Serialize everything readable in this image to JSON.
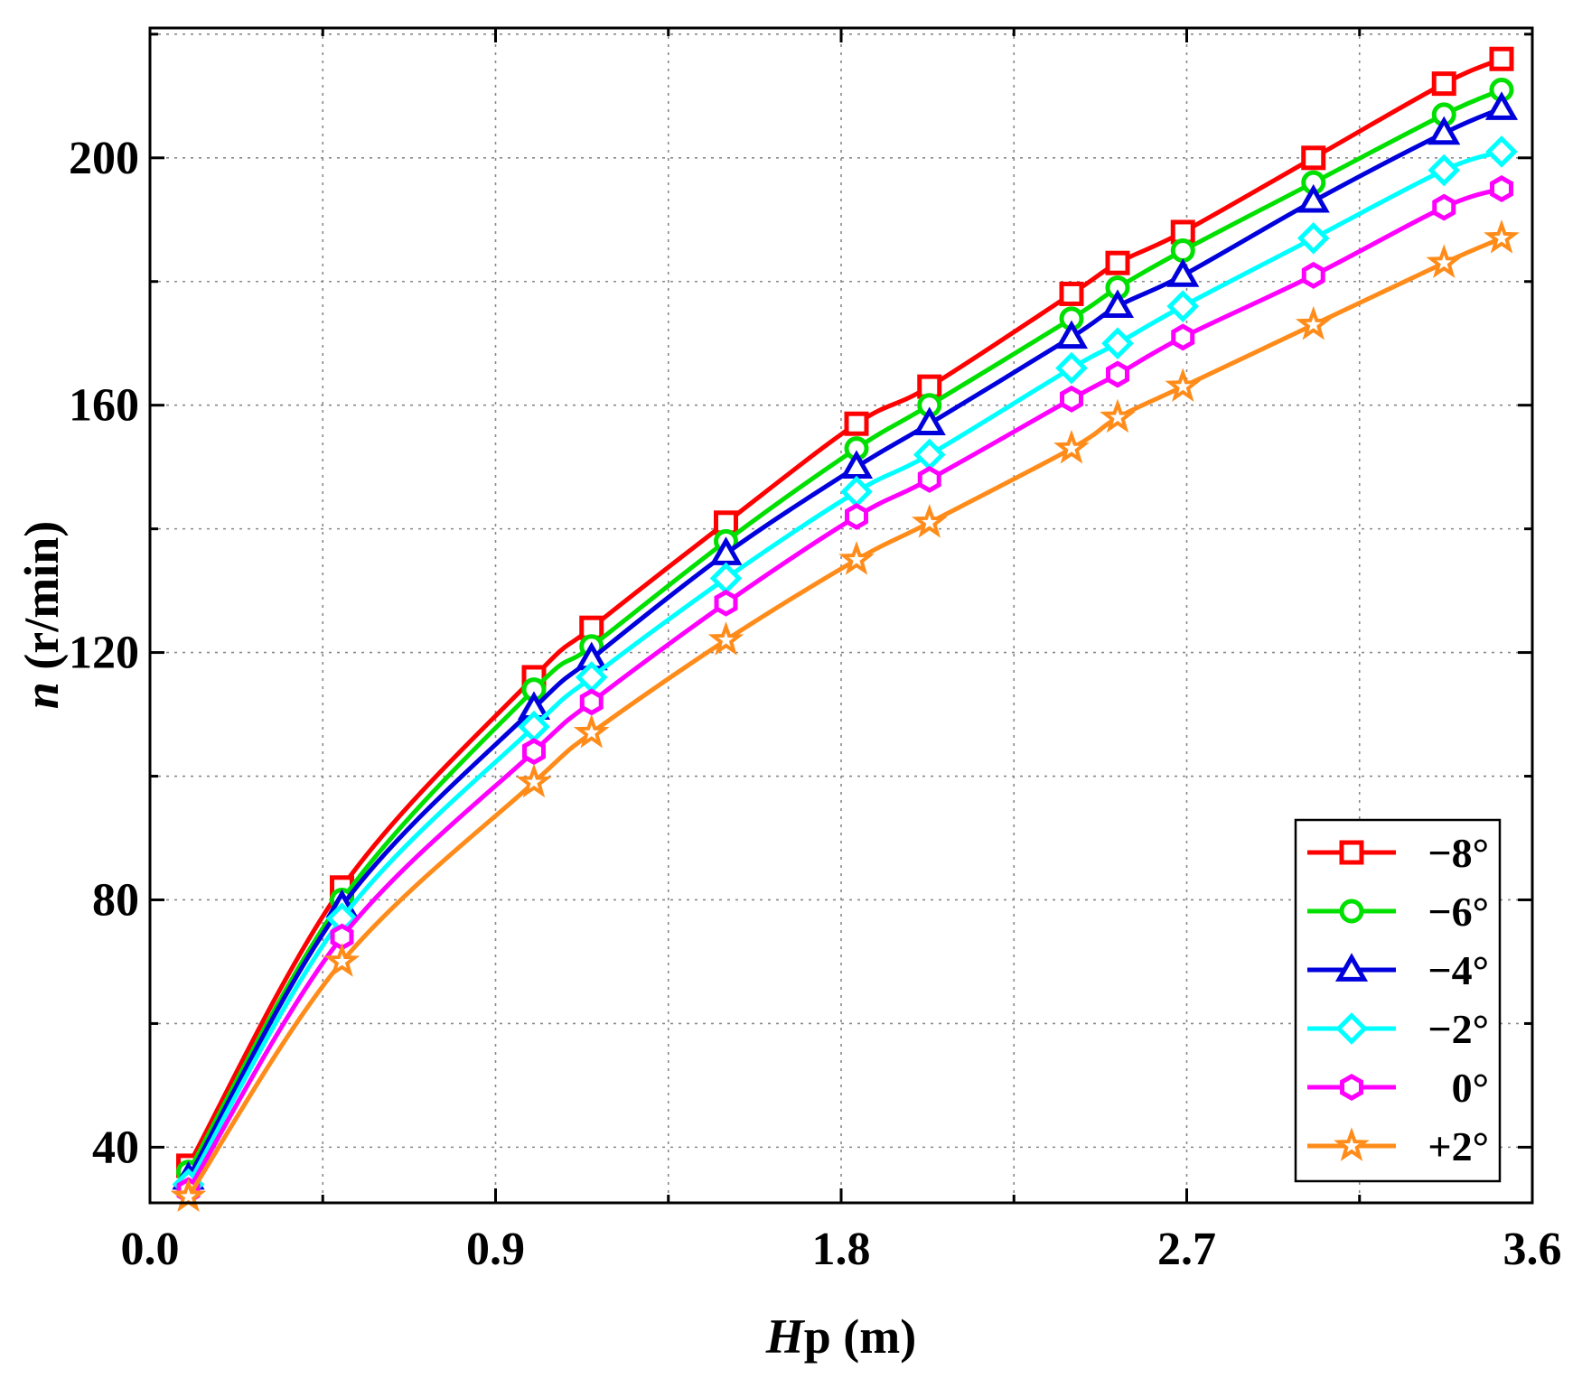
{
  "chart_data": {
    "type": "line",
    "title": "",
    "xlabel_italic": "H",
    "xlabel_rest": "p (m)",
    "ylabel_italic": "n",
    "ylabel_rest": " (r/min)",
    "xlim": [
      0.0,
      3.6
    ],
    "ylim": [
      31,
      221
    ],
    "xticks": [
      0.0,
      0.9,
      1.8,
      2.7,
      3.6
    ],
    "xtick_labels": [
      "0.0",
      "0.9",
      "1.8",
      "2.7",
      "3.6"
    ],
    "yticks": [
      40,
      80,
      120,
      160,
      200
    ],
    "ytick_labels": [
      "40",
      "80",
      "120",
      "160",
      "200"
    ],
    "x": [
      0.1,
      0.5,
      1.0,
      1.15,
      1.5,
      1.84,
      2.03,
      2.4,
      2.52,
      2.69,
      3.03,
      3.37,
      3.52
    ],
    "series": [
      {
        "name": "−8°",
        "marker": "square",
        "color": "#ff0000",
        "values": [
          37,
          82,
          116,
          124,
          141,
          157,
          163,
          178,
          183,
          188,
          200,
          212,
          216
        ]
      },
      {
        "name": "−6°",
        "marker": "circle",
        "color": "#00e000",
        "values": [
          36,
          80,
          114,
          121,
          138,
          153,
          160,
          174,
          179,
          185,
          196,
          207,
          211
        ]
      },
      {
        "name": "−4°",
        "marker": "triangle",
        "color": "#0000dd",
        "values": [
          35,
          79,
          111,
          119,
          136,
          150,
          157,
          171,
          176,
          181,
          193,
          204,
          208
        ]
      },
      {
        "name": "−2°",
        "marker": "diamond",
        "color": "#00ffff",
        "values": [
          34,
          77,
          108,
          116,
          132,
          146,
          152,
          166,
          170,
          176,
          187,
          198,
          201
        ]
      },
      {
        "name": "0°",
        "marker": "hexagon",
        "color": "#ff00ff",
        "values": [
          33,
          74,
          104,
          112,
          128,
          142,
          148,
          161,
          165,
          171,
          181,
          192,
          195
        ]
      },
      {
        "name": "+2°",
        "marker": "star",
        "color": "#ff8c1a",
        "values": [
          32,
          70,
          99,
          107,
          122,
          135,
          141,
          153,
          158,
          163,
          173,
          183,
          187
        ]
      }
    ],
    "legend_position": "bottom-right",
    "grid": true
  }
}
